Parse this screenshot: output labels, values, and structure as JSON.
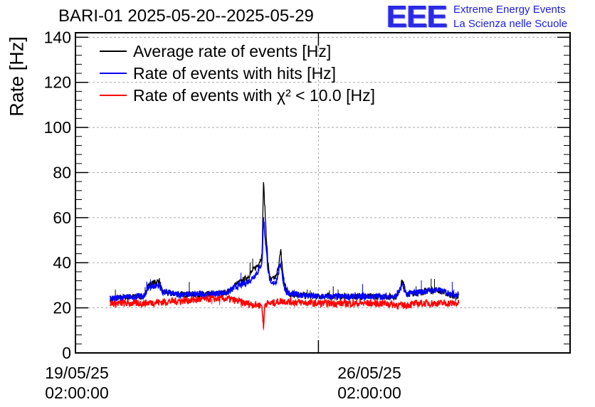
{
  "title": "BARI-01 2025-05-20--2025-05-29",
  "logo": {
    "mark": "EEE",
    "line1": "Extreme Energy Events",
    "line2": "La Scienza nelle Scuole"
  },
  "chart_data": {
    "type": "line",
    "title": "BARI-01 2025-05-20--2025-05-29",
    "ylabel": "Rate [Hz]",
    "xlabel": "",
    "ylim": [
      0,
      142
    ],
    "xlim_days": [
      "19/05/25 02:00:00",
      "02/06/25 08:00:00"
    ],
    "y_ticks": [
      0,
      20,
      40,
      60,
      80,
      100,
      120,
      140
    ],
    "x_ticks": [
      {
        "date": "19/05/25",
        "time": "02:00:00"
      },
      {
        "date": "26/05/25",
        "time": "02:00:00"
      }
    ],
    "grid": true,
    "legend_position": "top-left",
    "series": [
      {
        "name": "Average rate of events [Hz]",
        "color": "#000000",
        "x": [
          "20/05/25 02:00",
          "20/05/25 18:00",
          "21/05/25 02:00",
          "21/05/25 04:00",
          "21/05/25 12:00",
          "21/05/25 14:00",
          "22/05/25 00:00",
          "23/05/25 00:00",
          "23/05/25 12:00",
          "23/05/25 16:00",
          "24/05/25 00:00",
          "24/05/25 04:00",
          "24/05/25 08:00",
          "24/05/25 11:00",
          "24/05/25 12:00",
          "24/05/25 15:00",
          "24/05/25 17:00",
          "24/05/25 21:00",
          "25/05/25 00:00",
          "25/05/25 02:00",
          "25/05/25 04:00",
          "25/05/25 06:00",
          "25/05/25 10:00",
          "26/05/25 00:00",
          "27/05/25 00:00",
          "28/05/25 00:00",
          "28/05/25 08:00",
          "28/05/25 12:00",
          "28/05/25 15:00",
          "29/05/25 00:00",
          "29/05/25 12:00",
          "30/05/25 00:00",
          "30/05/25 03:00"
        ],
        "values": [
          24,
          25,
          25,
          30,
          32,
          27,
          26,
          26,
          27,
          30,
          33,
          36,
          39,
          43,
          76,
          40,
          32,
          34,
          45,
          32,
          28,
          26,
          26,
          25,
          25,
          25,
          25,
          32,
          26,
          27,
          28,
          25,
          25
        ]
      },
      {
        "name": "Rate of events with hits [Hz]",
        "color": "#0000ff",
        "x": [
          "20/05/25 02:00",
          "20/05/25 18:00",
          "21/05/25 02:00",
          "21/05/25 04:00",
          "21/05/25 12:00",
          "21/05/25 14:00",
          "22/05/25 00:00",
          "23/05/25 00:00",
          "23/05/25 12:00",
          "23/05/25 16:00",
          "24/05/25 00:00",
          "24/05/25 04:00",
          "24/05/25 08:00",
          "24/05/25 11:00",
          "24/05/25 12:00",
          "24/05/25 15:00",
          "24/05/25 17:00",
          "24/05/25 21:00",
          "25/05/25 00:00",
          "25/05/25 02:00",
          "25/05/25 04:00",
          "25/05/25 06:00",
          "25/05/25 10:00",
          "26/05/25 00:00",
          "27/05/25 00:00",
          "28/05/25 00:00",
          "28/05/25 08:00",
          "28/05/25 12:00",
          "28/05/25 15:00",
          "29/05/25 00:00",
          "29/05/25 12:00",
          "30/05/25 00:00",
          "30/05/25 03:00"
        ],
        "values": [
          24,
          25,
          25,
          29,
          30,
          27,
          26,
          26,
          27,
          29,
          31,
          33,
          36,
          40,
          60,
          38,
          30,
          32,
          40,
          30,
          27,
          26,
          26,
          25,
          25,
          25,
          25,
          30,
          26,
          27,
          28,
          26,
          26
        ]
      },
      {
        "name": "Rate of events with χ² < 10.0 [Hz]",
        "color": "#ff0000",
        "x": [
          "20/05/25 02:00",
          "21/05/25 00:00",
          "22/05/25 00:00",
          "23/05/25 00:00",
          "23/05/25 12:00",
          "24/05/25 00:00",
          "24/05/25 11:00",
          "24/05/25 12:00",
          "24/05/25 13:00",
          "24/05/25 18:00",
          "25/05/25 00:00",
          "26/05/25 00:00",
          "27/05/25 00:00",
          "28/05/25 00:00",
          "28/05/25 12:00",
          "29/05/25 00:00",
          "30/05/25 03:00"
        ],
        "values": [
          22,
          22,
          23,
          24,
          24,
          22,
          21,
          11,
          22,
          22,
          23,
          22,
          22,
          22,
          21,
          22,
          22
        ]
      }
    ]
  }
}
